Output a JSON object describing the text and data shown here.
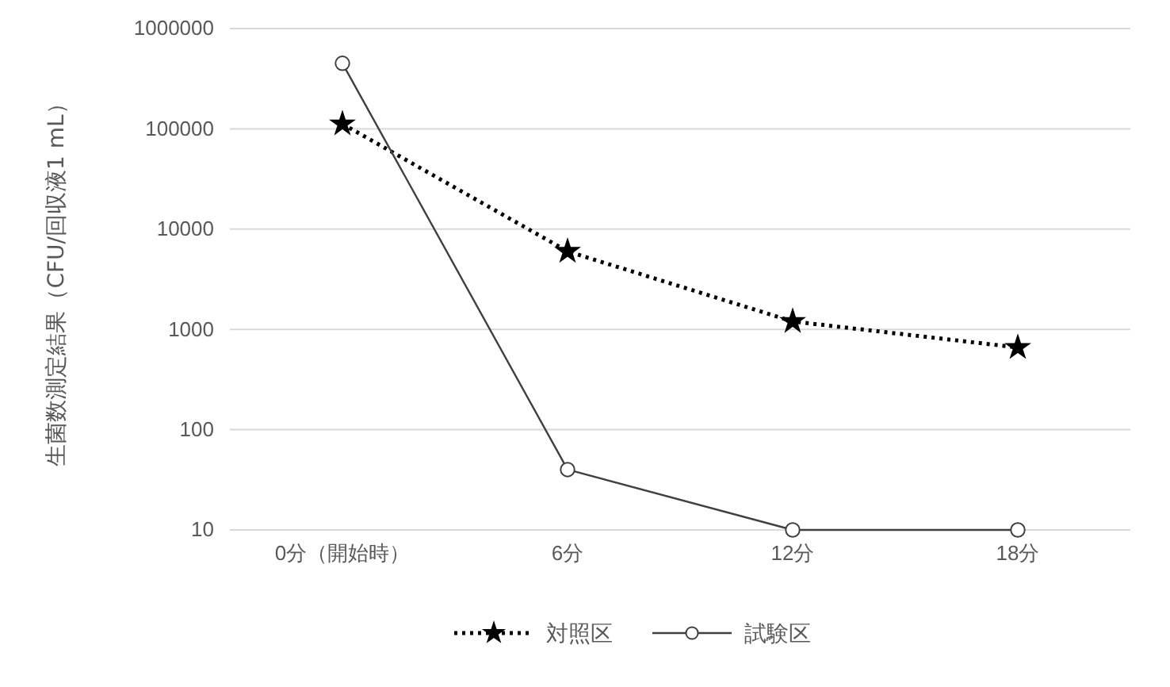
{
  "chart_data": {
    "type": "line",
    "ylabel": "生菌数測定結果（CFU/回収液1 mL）",
    "categories": [
      "0分（開始時）",
      "6分",
      "12分",
      "18分"
    ],
    "series": [
      {
        "name": "対照区",
        "color": "#000000",
        "values": [
          112000,
          6000,
          1200,
          660
        ],
        "marker": "star",
        "line_style": "dotted"
      },
      {
        "name": "試験区",
        "color": "#404040",
        "values": [
          450000,
          40,
          10,
          10
        ],
        "marker": "circle",
        "line_style": "solid"
      }
    ],
    "log": true,
    "ylim": [
      10,
      1000000
    ],
    "yticks": [
      10,
      100,
      1000,
      10000,
      100000,
      1000000
    ],
    "grid": "y",
    "legend": "bottom"
  }
}
